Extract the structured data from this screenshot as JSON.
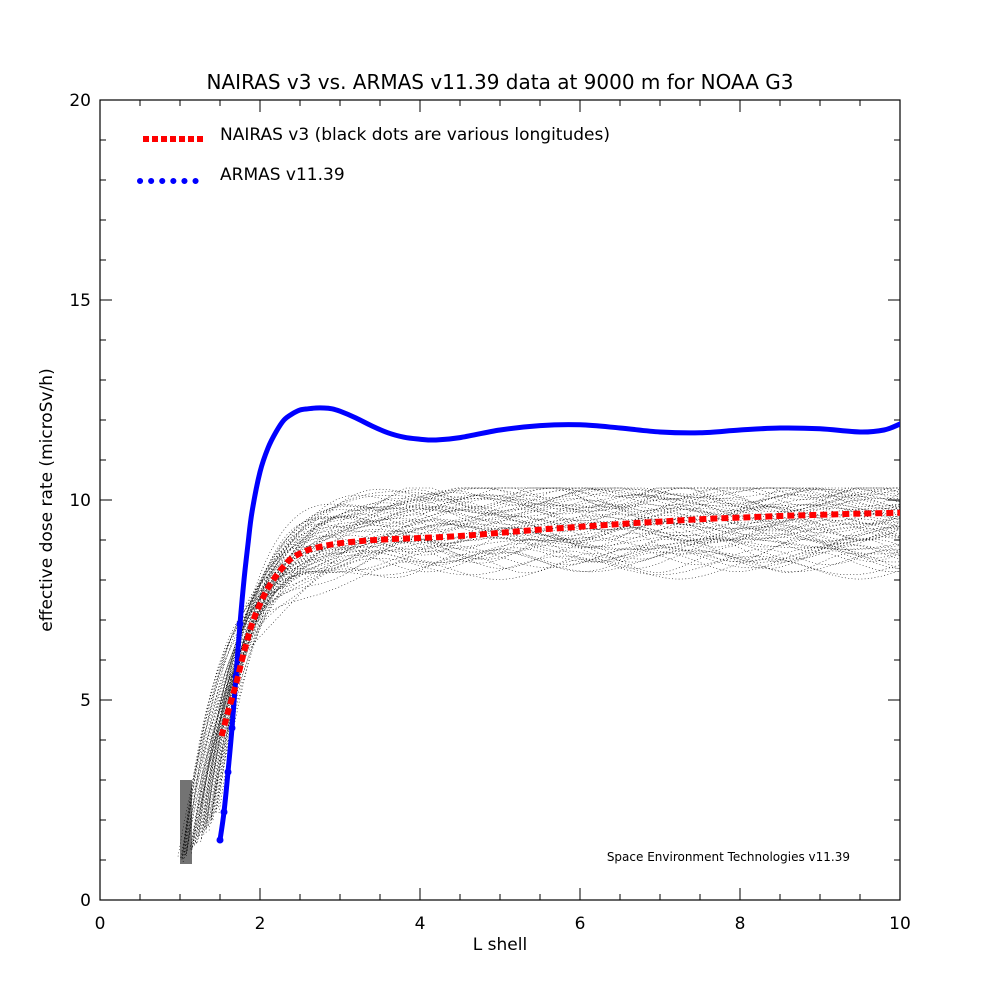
{
  "chart_data": {
    "type": "line",
    "title": "NAIRAS  v3 vs. ARMAS v11.39 data at 9000 m for NOAA G3",
    "xlabel": "L shell",
    "ylabel": "effective dose rate (microSv/h)",
    "xlim": [
      0,
      10
    ],
    "ylim": [
      0,
      20
    ],
    "xticks": [
      "0",
      "2",
      "4",
      "6",
      "8",
      "10"
    ],
    "yticks": [
      "0",
      "5",
      "10",
      "15",
      "20"
    ],
    "annotation": "Space Environment Technologies v11.39",
    "legend_position": "top-left",
    "grid": false,
    "series": [
      {
        "name": "NAIRAS v3 (black dots are various longitudes)",
        "style": "dotted",
        "color": "#ff0000",
        "x": [
          1.52,
          1.6,
          1.7,
          1.8,
          1.9,
          2.0,
          2.1,
          2.2,
          2.3,
          2.4,
          2.6,
          2.8,
          3.0,
          3.3,
          3.6,
          4.0,
          4.5,
          5.0,
          5.5,
          6.0,
          6.5,
          7.0,
          7.5,
          8.0,
          8.5,
          9.0,
          9.5,
          10.0
        ],
        "y": [
          4.1,
          4.7,
          5.4,
          6.2,
          6.9,
          7.4,
          7.8,
          8.1,
          8.35,
          8.55,
          8.75,
          8.85,
          8.92,
          8.98,
          9.02,
          9.05,
          9.1,
          9.18,
          9.26,
          9.33,
          9.4,
          9.46,
          9.52,
          9.56,
          9.6,
          9.63,
          9.66,
          9.68
        ]
      },
      {
        "name": "ARMAS v11.39",
        "style": "dotted-then-solid",
        "color": "#0000ff",
        "x": [
          1.5,
          1.55,
          1.6,
          1.65,
          1.7,
          1.75,
          1.8,
          1.85,
          1.9,
          2.0,
          2.1,
          2.2,
          2.3,
          2.4,
          2.5,
          2.6,
          2.7,
          2.8,
          2.9,
          3.0,
          3.2,
          3.4,
          3.6,
          3.8,
          4.0,
          4.2,
          4.5,
          5.0,
          5.5,
          6.0,
          6.5,
          7.0,
          7.5,
          8.0,
          8.5,
          9.0,
          9.5,
          9.8,
          10.0
        ],
        "y": [
          1.5,
          2.2,
          3.2,
          4.3,
          5.6,
          6.9,
          8.0,
          8.9,
          9.7,
          10.7,
          11.3,
          11.7,
          12.0,
          12.15,
          12.25,
          12.28,
          12.3,
          12.3,
          12.28,
          12.22,
          12.05,
          11.85,
          11.68,
          11.57,
          11.52,
          11.5,
          11.56,
          11.75,
          11.86,
          11.88,
          11.8,
          11.7,
          11.68,
          11.75,
          11.8,
          11.78,
          11.7,
          11.75,
          11.9
        ]
      }
    ]
  }
}
